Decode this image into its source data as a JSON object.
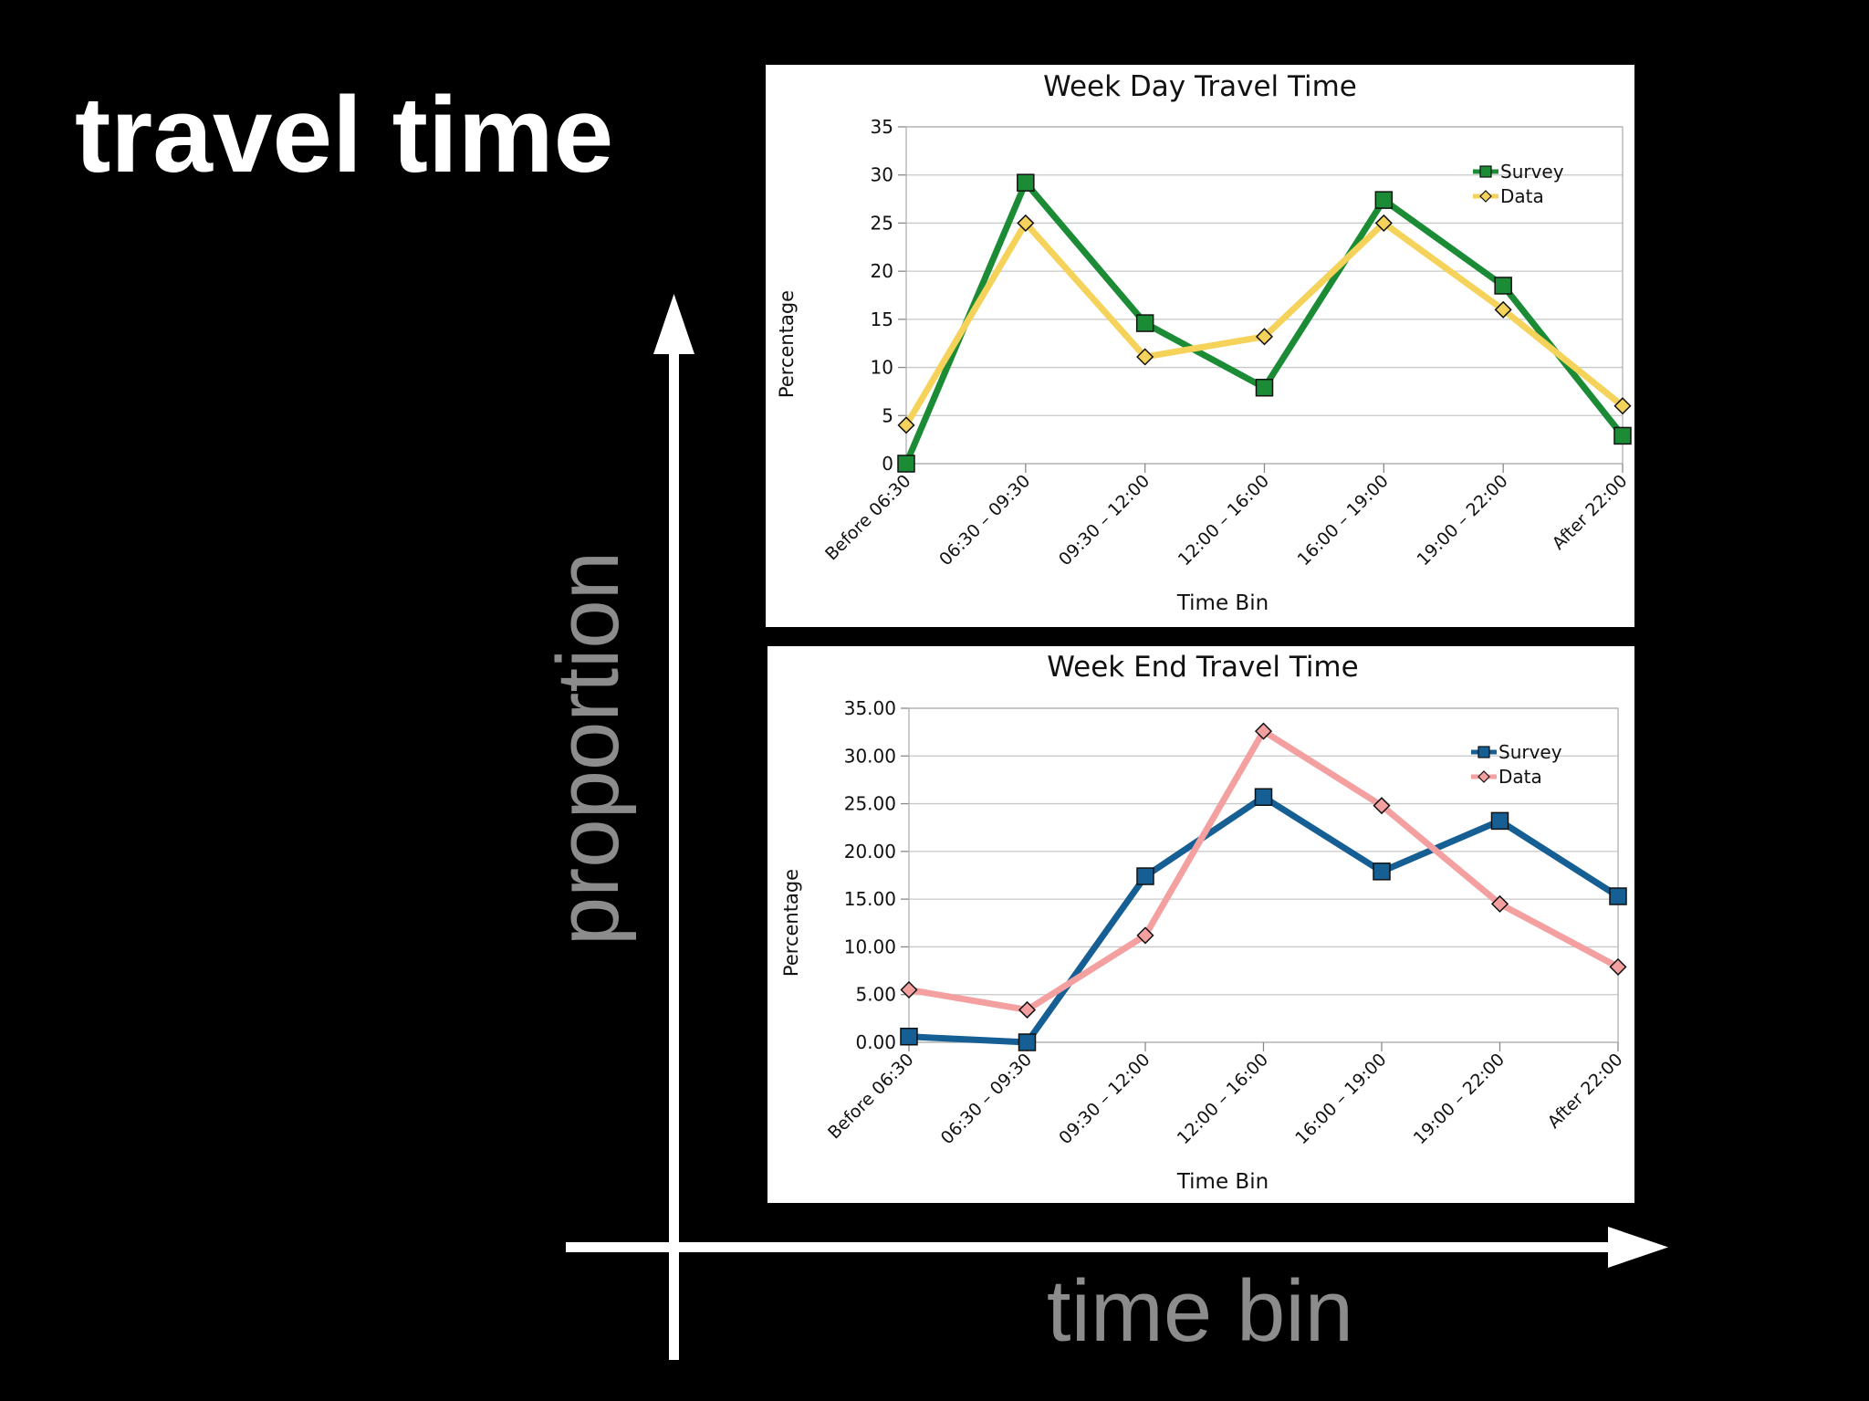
{
  "slide": {
    "title": "travel time",
    "y_axis_caption": "proportion",
    "x_axis_caption": "time bin",
    "arrow_color": "#ffffff",
    "caption_color": "#8c8c8c"
  },
  "chart_data": [
    {
      "type": "line",
      "title": "Week Day Travel Time",
      "xlabel": "Time Bin",
      "ylabel": "Percentage",
      "categories": [
        "Before 06:30",
        "06:30 – 09:30",
        "09:30 – 12:00",
        "12:00 – 16:00",
        "16:00 – 19:00",
        "19:00 – 22:00",
        "After 22:00"
      ],
      "ylim": [
        0,
        35
      ],
      "yticks": [
        "0",
        "5",
        "10",
        "15",
        "20",
        "25",
        "30",
        "35"
      ],
      "grid": true,
      "legend": "top-right",
      "series": [
        {
          "name": "Survey",
          "color": "#1b8c35",
          "marker": "square",
          "values": [
            0,
            29.2,
            14.6,
            7.9,
            27.4,
            18.5,
            2.9
          ]
        },
        {
          "name": "Data",
          "color": "#f5d35b",
          "marker": "diamond",
          "values": [
            4.0,
            25.0,
            11.1,
            13.2,
            25.0,
            16.0,
            6.0
          ]
        }
      ]
    },
    {
      "type": "line",
      "title": "Week End Travel Time",
      "xlabel": "Time Bin",
      "ylabel": "Percentage",
      "categories": [
        "Before 06:30",
        "06:30 – 09:30",
        "09:30 – 12:00",
        "12:00 – 16:00",
        "16:00 – 19:00",
        "19:00 – 22:00",
        "After 22:00"
      ],
      "ylim": [
        0,
        35
      ],
      "yticks": [
        "0.00",
        "5.00",
        "10.00",
        "15.00",
        "20.00",
        "25.00",
        "30.00",
        "35.00"
      ],
      "grid": true,
      "legend": "top-right",
      "series": [
        {
          "name": "Survey",
          "color": "#155f94",
          "marker": "square",
          "values": [
            0.6,
            0.0,
            17.4,
            25.7,
            17.9,
            23.2,
            15.3
          ]
        },
        {
          "name": "Data",
          "color": "#f4a0a0",
          "marker": "diamond",
          "values": [
            5.5,
            3.4,
            11.2,
            32.6,
            24.8,
            14.5,
            7.9
          ]
        }
      ]
    }
  ]
}
